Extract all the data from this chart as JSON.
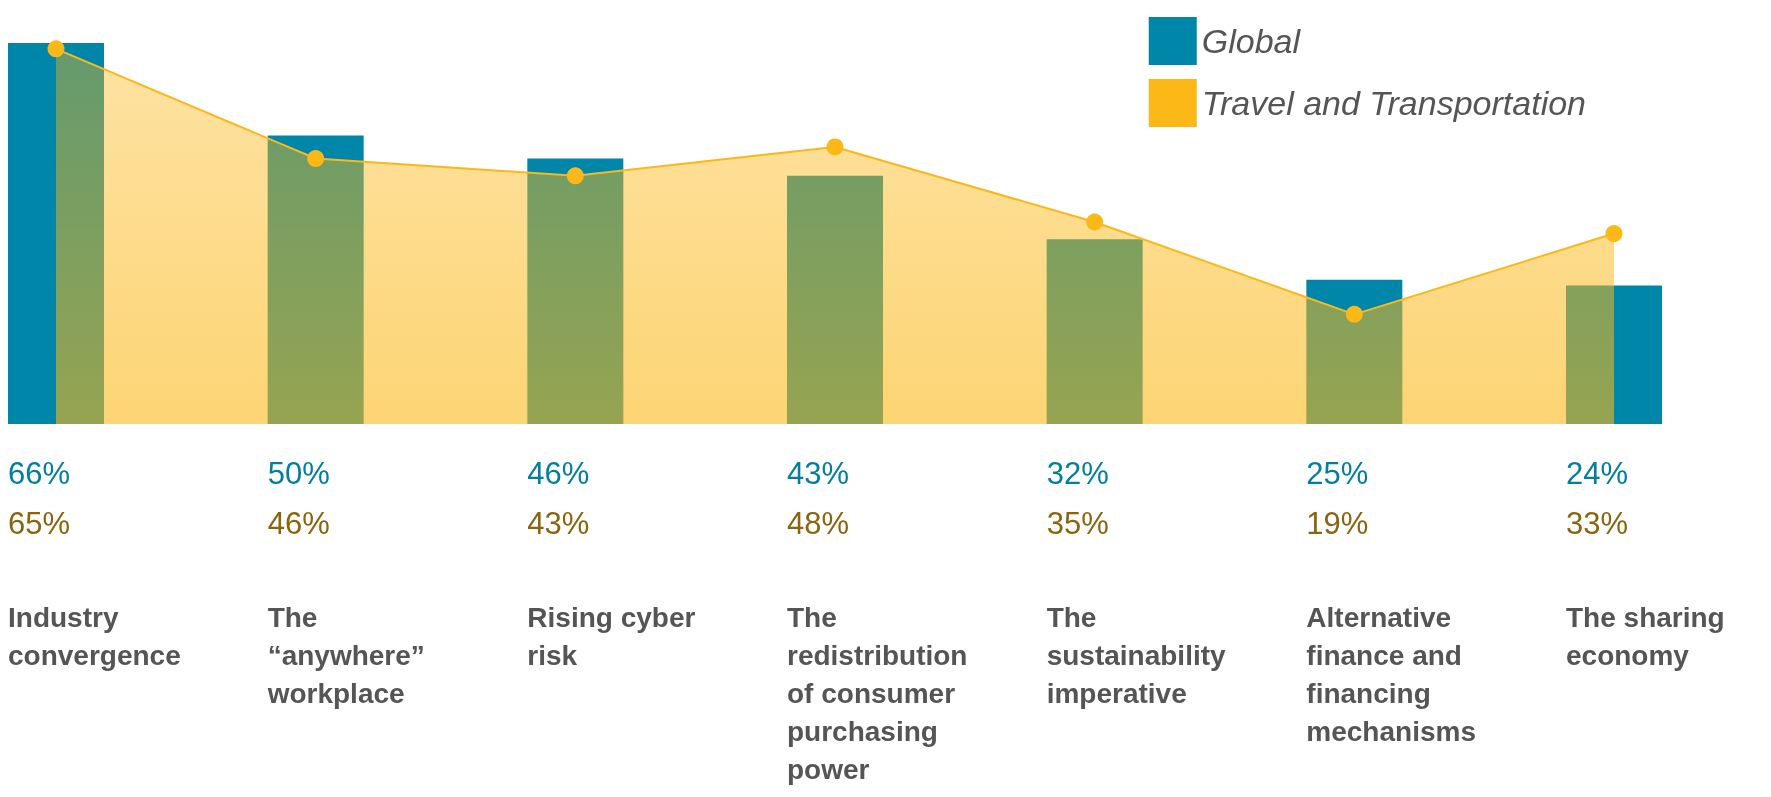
{
  "chart_data": {
    "type": "bar",
    "categories": [
      "Industry convergence",
      "The “anywhere” workplace",
      "Rising cyber risk",
      "The redistribution of consumer purchasing power",
      "The sustainability imperative",
      "Alternative finance and financing mechanisms",
      "The sharing economy"
    ],
    "series": [
      {
        "name": "Global",
        "color": "#0086a8",
        "values": [
          66,
          50,
          46,
          43,
          32,
          25,
          24
        ],
        "value_labels": [
          "66%",
          "50%",
          "46%",
          "43%",
          "32%",
          "25%",
          "24%"
        ]
      },
      {
        "name": "Travel and Transportation",
        "type": "area",
        "color": "#fbb817",
        "values": [
          65,
          46,
          43,
          48,
          35,
          19,
          33
        ],
        "value_labels": [
          "65%",
          "46%",
          "43%",
          "48%",
          "35%",
          "19%",
          "33%"
        ]
      }
    ],
    "legend": "top right",
    "marker": "circle",
    "grid": false
  }
}
